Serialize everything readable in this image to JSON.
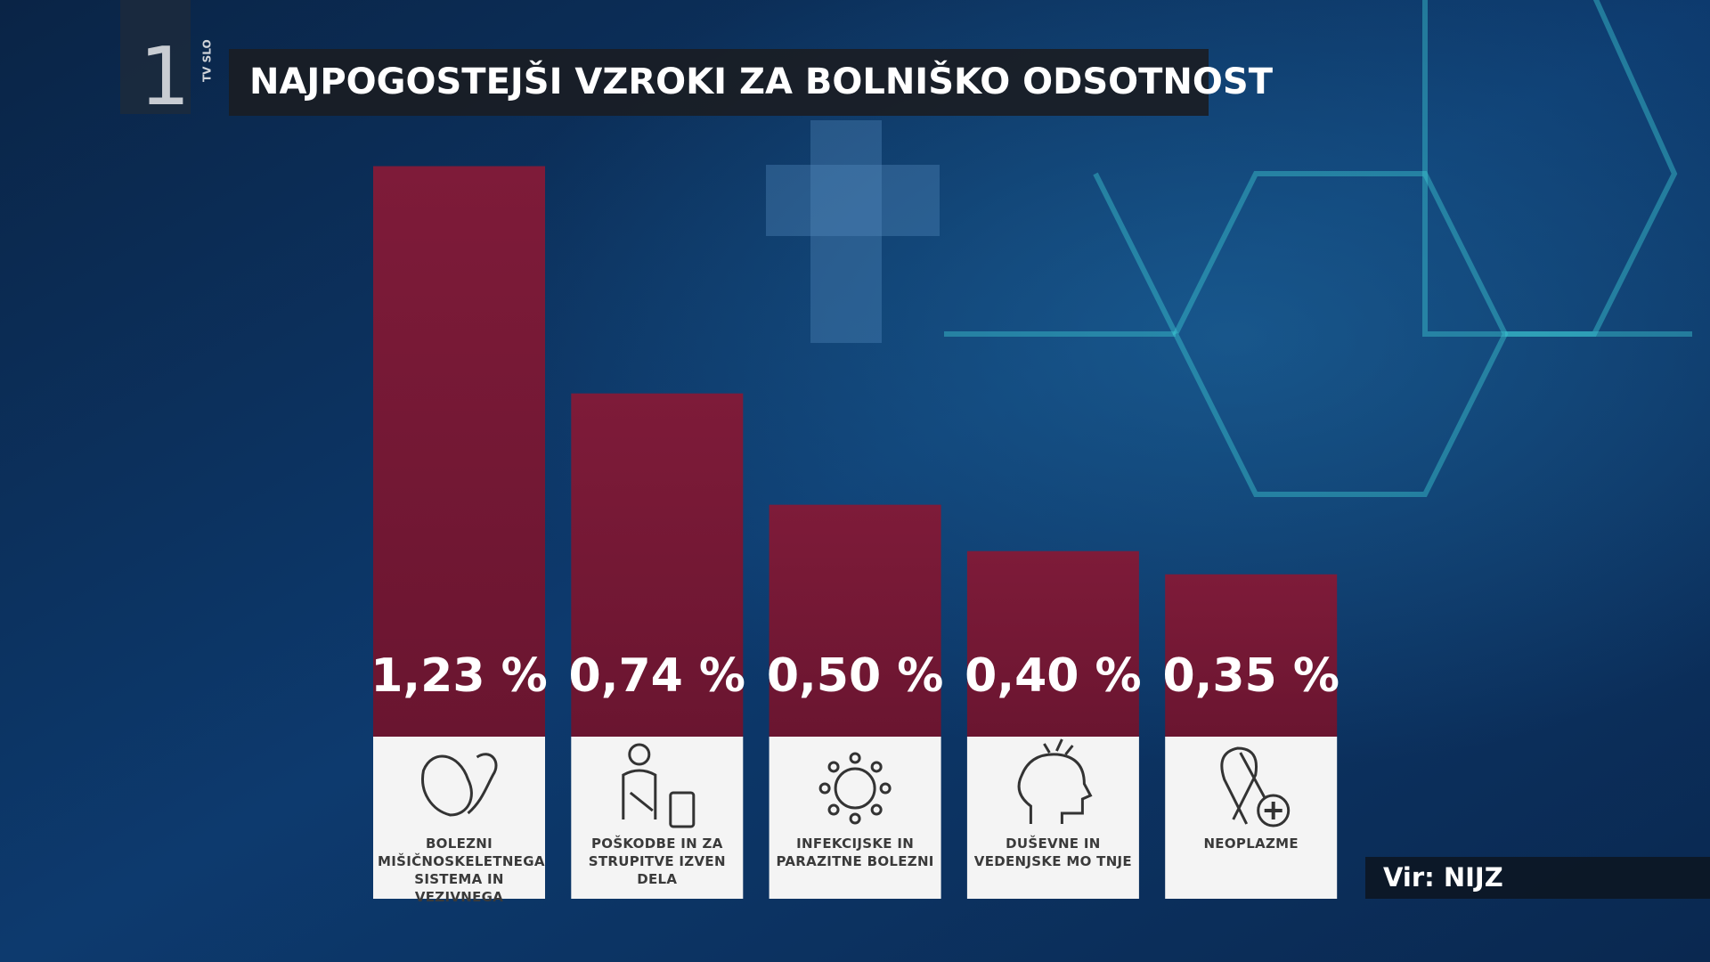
{
  "channel": {
    "number": "1",
    "name": "TV SLO"
  },
  "chart_data": {
    "type": "bar",
    "title": "NAJPOGOSTEJŠI VZROKI ZA BOLNIŠKO ODSOTNOST",
    "categories": [
      "BOLEZNI MIŠIČNOSKELETNEGA SISTEMA IN VEZIVNEGA",
      "POŠKODBE IN ZA STRUPITVE IZVEN DELA",
      "INFEKCIJSKE IN PARAZITNE BOLEZNI",
      "DUŠEVNE IN VEDENJSKE MO TNJE",
      "NEOPLAZME"
    ],
    "values": [
      1.23,
      0.74,
      0.5,
      0.4,
      0.35
    ],
    "value_labels": [
      "1,23 %",
      "0,74 %",
      "0,50 %",
      "0,40 %",
      "0,35 %"
    ],
    "color": "#751a34",
    "source": "Vir: NIJZ"
  }
}
